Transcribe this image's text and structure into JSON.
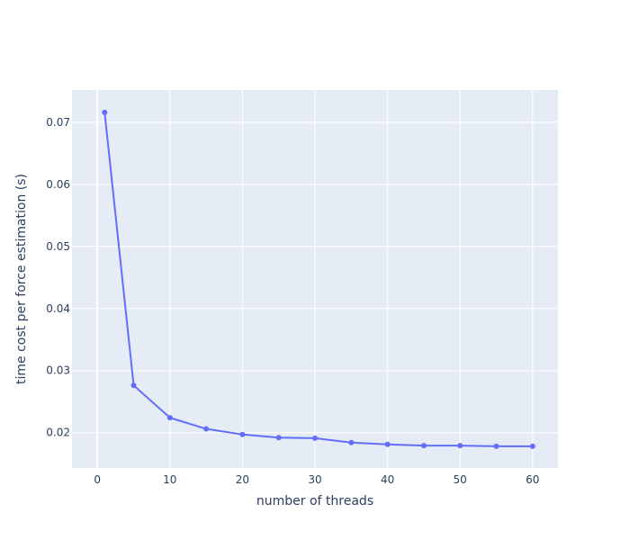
{
  "chart_data": {
    "type": "line",
    "title": "",
    "xlabel": "number of threads",
    "ylabel": "time cost per force estimation (s)",
    "xlim": [
      -3.5,
      63.5
    ],
    "ylim": [
      0.0143,
      0.0752
    ],
    "x_ticks": [
      0,
      10,
      20,
      30,
      40,
      50,
      60
    ],
    "y_ticks": [
      0.02,
      0.03,
      0.04,
      0.05,
      0.06,
      0.07
    ],
    "x_tick_labels": [
      "0",
      "10",
      "20",
      "30",
      "40",
      "50",
      "60"
    ],
    "y_tick_labels": [
      "0.02",
      "0.03",
      "0.04",
      "0.05",
      "0.06",
      "0.07"
    ],
    "grid": true,
    "legend": "none",
    "colors": {
      "plot_bg": "#E5ECF6",
      "grid": "#ffffff",
      "line": "#636EFA",
      "text": "#2a3f5f"
    },
    "series": [
      {
        "x": [
          1,
          5,
          10,
          15,
          20,
          25,
          30,
          35,
          40,
          45,
          50,
          55,
          60
        ],
        "values": [
          0.0716,
          0.0276,
          0.0224,
          0.0206,
          0.0197,
          0.0192,
          0.0191,
          0.0184,
          0.0181,
          0.0179,
          0.0179,
          0.0178,
          0.0178
        ]
      }
    ]
  }
}
